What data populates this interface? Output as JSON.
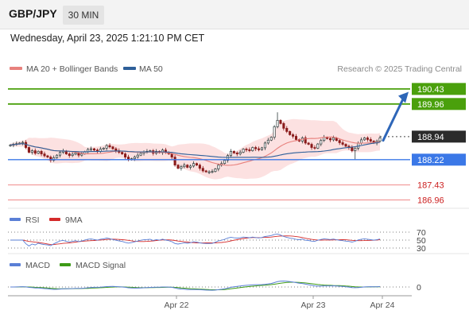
{
  "header": {
    "symbol": "GBP/JPY",
    "timeframe": "30 MIN",
    "datetime": "Wednesday, April 23, 2025 1:21:10 PM CET"
  },
  "legend": {
    "ma20": "MA 20 + Bollinger Bands",
    "ma50": "MA 50",
    "source": "Research © 2025 Trading Central",
    "rsi": "RSI",
    "rsi_ma": "9MA",
    "macd": "MACD",
    "macd_signal": "MACD Signal"
  },
  "colors": {
    "ma20": "#e8817d",
    "bollinger_fill": "#fbdcdc",
    "ma50": "#2e5f99",
    "candle_up": "#2d3a3a",
    "candle_down": "#8a1a1a",
    "target": "#4aa00c",
    "pivot": "#3b78e7",
    "support": "#f08a8a",
    "resistance_label": "#cc1f1f",
    "arrow": "#2e66b8",
    "rsi": "#5a7fd6",
    "rsi_ma": "#d42a2a",
    "macd": "#5a7fd6",
    "macd_signal": "#3d9a16"
  },
  "chart_data": [
    {
      "type": "candlestick",
      "title": "",
      "x_tick_labels": [
        "Apr 22",
        "Apr 23",
        "Apr 24"
      ],
      "y_range": [
        186.7,
        190.8
      ],
      "bar_count": 120,
      "close": [
        188.68,
        188.7,
        188.72,
        188.74,
        188.76,
        188.6,
        188.45,
        188.5,
        188.42,
        188.48,
        188.4,
        188.34,
        188.3,
        188.2,
        188.28,
        188.36,
        188.45,
        188.49,
        188.4,
        188.35,
        188.39,
        188.43,
        188.36,
        188.4,
        188.47,
        188.54,
        188.56,
        188.52,
        188.48,
        188.55,
        188.58,
        188.66,
        188.62,
        188.56,
        188.5,
        188.45,
        188.4,
        188.3,
        188.22,
        188.25,
        188.3,
        188.36,
        188.42,
        188.46,
        188.48,
        188.5,
        188.42,
        188.48,
        188.44,
        188.52,
        188.45,
        188.4,
        188.3,
        188.05,
        187.95,
        188.0,
        188.05,
        187.98,
        188.02,
        188.1,
        188.05,
        187.95,
        187.87,
        187.84,
        187.84,
        187.85,
        187.93,
        188.05,
        188.1,
        188.2,
        188.35,
        188.48,
        188.43,
        188.4,
        188.45,
        188.55,
        188.53,
        188.5,
        188.6,
        188.56,
        188.53,
        188.59,
        188.74,
        188.83,
        188.92,
        189.25,
        189.45,
        189.35,
        189.2,
        189.1,
        189.0,
        188.95,
        188.85,
        188.8,
        188.9,
        188.74,
        188.7,
        188.6,
        188.58,
        188.71,
        188.82,
        188.92,
        188.88,
        188.84,
        188.9,
        188.82,
        188.75,
        188.7,
        188.64,
        188.6,
        188.5,
        188.58,
        188.74,
        188.84,
        188.9,
        188.85,
        188.8,
        188.74,
        188.8,
        188.9
      ],
      "levels": [
        {
          "value": 190.43,
          "label": "190.43",
          "kind": "target"
        },
        {
          "value": 189.96,
          "label": "189.96",
          "kind": "target"
        },
        {
          "value": 188.94,
          "label": "188.94",
          "kind": "last"
        },
        {
          "value": 188.22,
          "label": "188.22",
          "kind": "pivot"
        },
        {
          "value": 187.43,
          "label": "187.43",
          "kind": "support"
        },
        {
          "value": 186.96,
          "label": "186.96",
          "kind": "support"
        }
      ],
      "arrow": {
        "from_bar": 120,
        "from_value": 188.82,
        "to_value": 190.34
      },
      "series": [
        {
          "name": "MA 20 + Bollinger Bands",
          "indicator": "ma20_bollinger"
        },
        {
          "name": "MA 50",
          "indicator": "ma50"
        }
      ]
    },
    {
      "type": "line",
      "title": "",
      "levels": [
        {
          "value": 70,
          "label": "70"
        },
        {
          "value": 50,
          "label": "50"
        },
        {
          "value": 30,
          "label": "30"
        }
      ],
      "series": [
        {
          "name": "RSI",
          "indicator": "rsi"
        },
        {
          "name": "9MA",
          "indicator": "rsi_ma"
        }
      ]
    },
    {
      "type": "line",
      "title": "",
      "levels": [
        {
          "value": 0,
          "label": "0"
        }
      ],
      "series": [
        {
          "name": "MACD",
          "indicator": "macd"
        },
        {
          "name": "MACD Signal",
          "indicator": "macd_signal"
        }
      ]
    }
  ]
}
